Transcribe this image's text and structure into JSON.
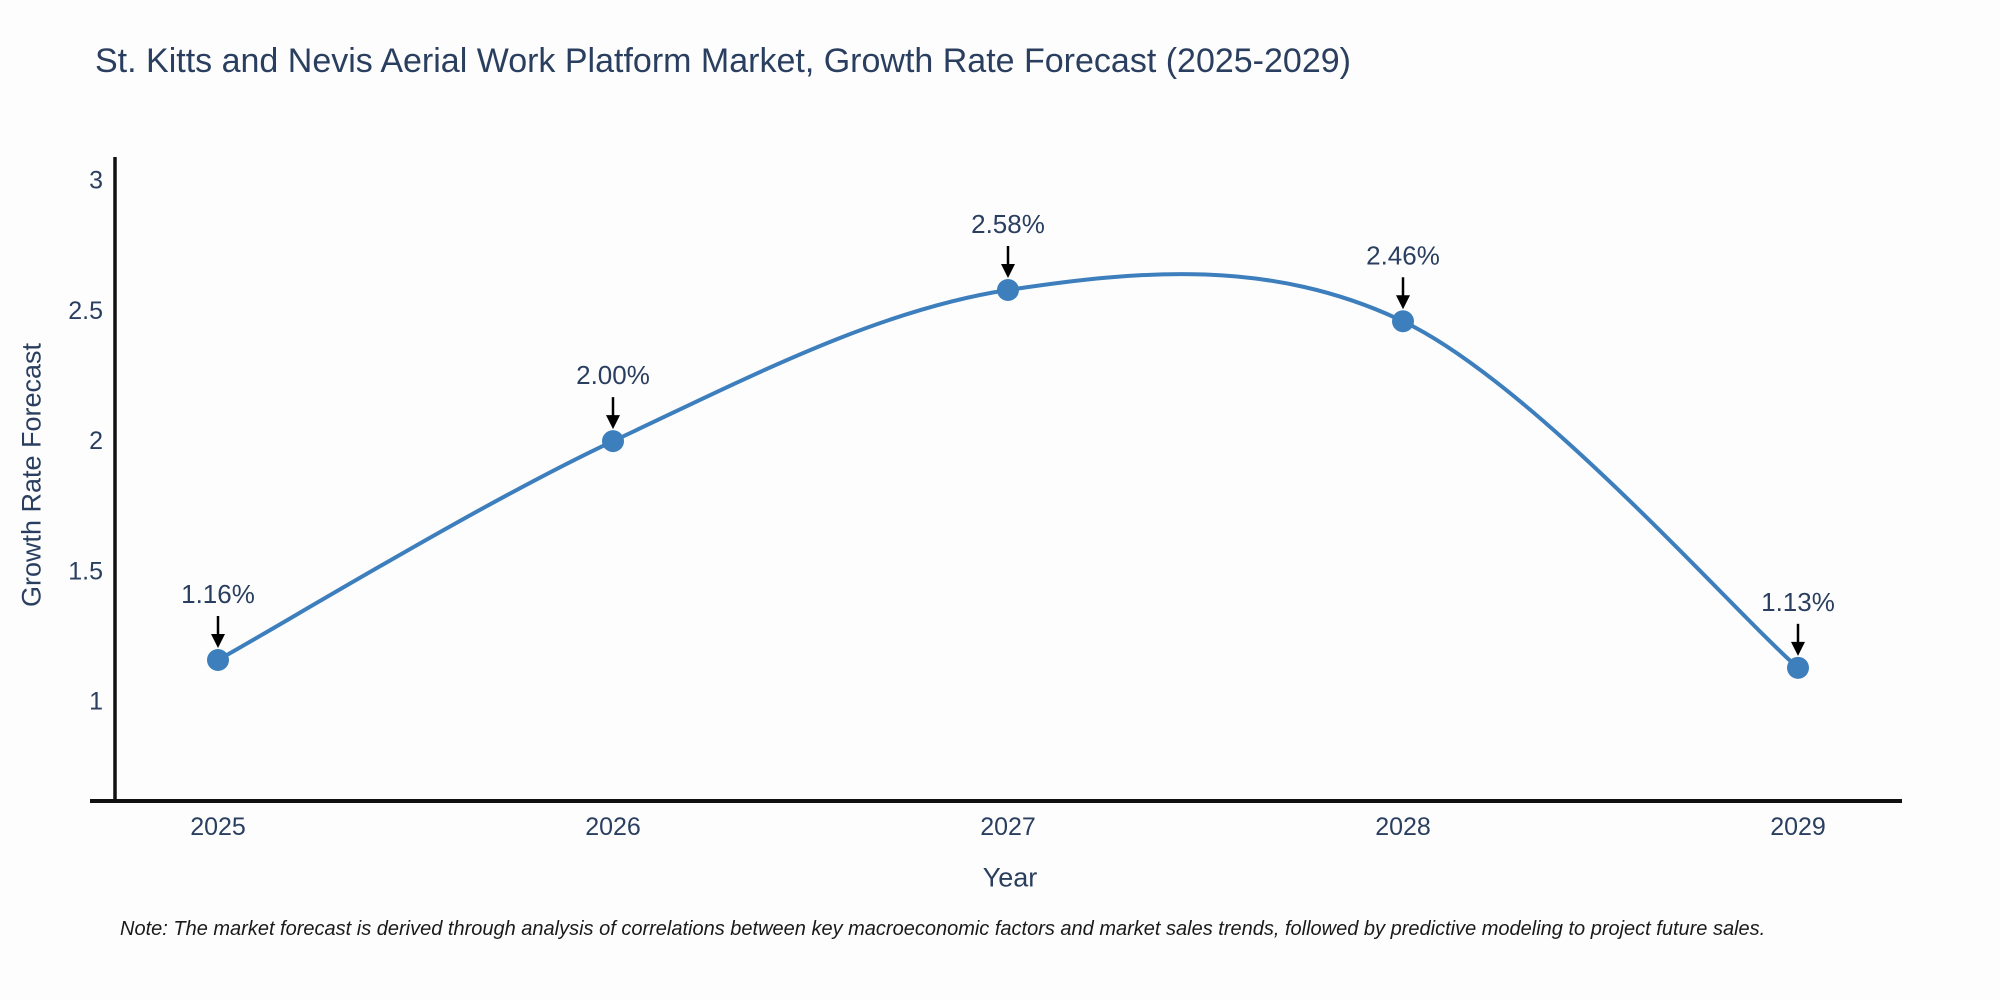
{
  "title": "St. Kitts and Nevis Aerial Work Platform Market, Growth Rate Forecast (2025-2029)",
  "note": "Note: The market forecast is derived through analysis of correlations between key macroeconomic factors and market sales trends, followed by predictive modeling to project future sales.",
  "chart_data": {
    "type": "line",
    "title": "St. Kitts and Nevis Aerial Work Platform Market, Growth Rate Forecast (2025-2029)",
    "xlabel": "Year",
    "ylabel": "Growth Rate Forecast",
    "x": [
      2025,
      2026,
      2027,
      2028,
      2029
    ],
    "values": [
      1.16,
      2.0,
      2.58,
      2.46,
      1.13
    ],
    "point_labels": [
      "1.16%",
      "2.00%",
      "2.58%",
      "2.46%",
      "1.13%"
    ],
    "x_tick_labels": [
      "2025",
      "2026",
      "2027",
      "2028",
      "2029"
    ],
    "y_ticks": [
      1,
      1.5,
      2,
      2.5,
      3
    ],
    "y_tick_labels": [
      "1",
      "1.5",
      "2",
      "2.5",
      "3"
    ],
    "ylim": [
      0.77,
      3.09
    ],
    "line_shape": "spline",
    "grid": false,
    "legend": "none",
    "annotation_style": "value label with down arrow to point",
    "colors": {
      "line": "#3d7ebd",
      "marker": "#3d7ebd",
      "arrow": "#000000",
      "text": "#2a3f5f",
      "axis": "#111111",
      "note_text": "#1a1a1a",
      "background": "#fdfdfd"
    }
  }
}
